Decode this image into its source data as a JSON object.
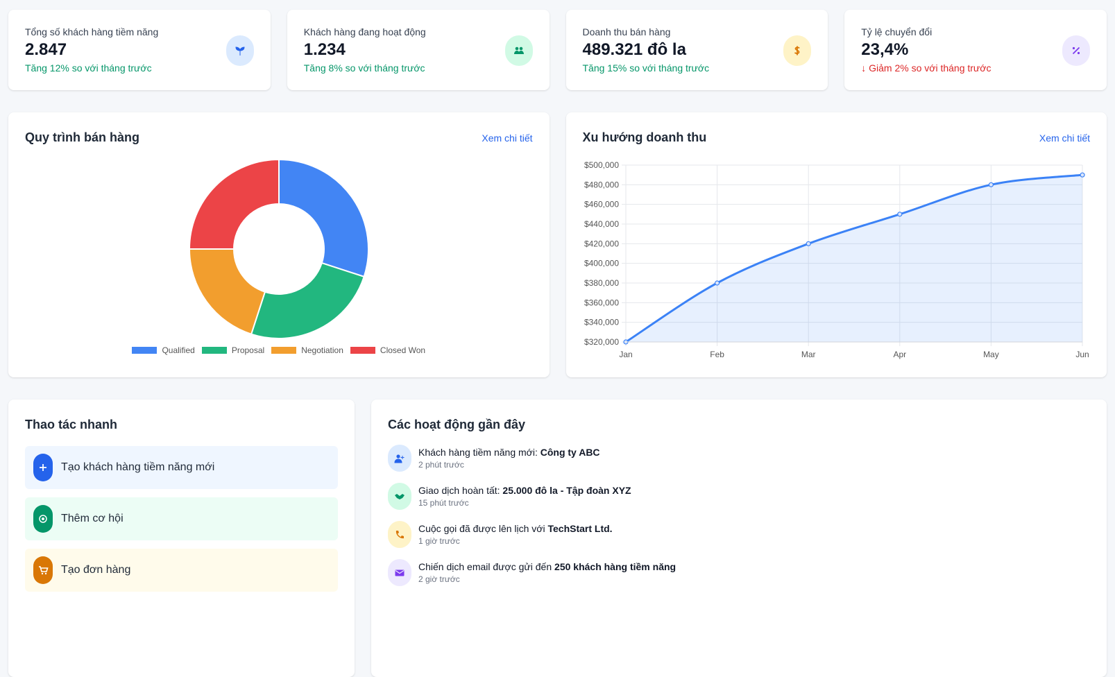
{
  "stats": [
    {
      "title": "Tổng số khách hàng tiềm năng",
      "value": "2.847",
      "change": "Tăng 12% so với tháng trước",
      "change_color": "#059669"
    },
    {
      "title": "Khách hàng đang hoạt động",
      "value": "1.234",
      "change": "Tăng 8% so với tháng trước",
      "change_color": "#059669"
    },
    {
      "title": "Doanh thu bán hàng",
      "value": "489.321 đô la",
      "change": "Tăng 15% so với tháng trước",
      "change_color": "#059669"
    },
    {
      "title": "Tỷ lệ chuyển đổi",
      "value": "23,4%",
      "change": "↓ Giảm 2% so với tháng trước",
      "change_color": "#dc2626"
    }
  ],
  "chart_data": [
    {
      "type": "donut",
      "title": "Quy trình bán hàng",
      "link_text": "Xem chi tiết",
      "categories": [
        "Qualified",
        "Proposal",
        "Negotiation",
        "Closed Won"
      ],
      "values": [
        30,
        25,
        20,
        25
      ],
      "colors": [
        "#4285f4",
        "#22b77f",
        "#f29e2e",
        "#ec4447"
      ],
      "legend": "bottom"
    },
    {
      "type": "line",
      "title": "Xu hướng doanh thu",
      "link_text": "Xem chi tiết",
      "categories": [
        "Jan",
        "Feb",
        "Mar",
        "Apr",
        "May",
        "Jun"
      ],
      "series": [
        {
          "color": "#3b82f6",
          "values": [
            320000,
            380000,
            420000,
            450000,
            480000,
            490000
          ]
        }
      ],
      "ylim": [
        320000,
        500000
      ],
      "yticks": [
        {
          "value": 320000,
          "label": "$320,000"
        },
        {
          "value": 340000,
          "label": "$340,000"
        },
        {
          "value": 360000,
          "label": "$360,000"
        },
        {
          "value": 380000,
          "label": "$380,000"
        },
        {
          "value": 400000,
          "label": "$400,000"
        },
        {
          "value": 420000,
          "label": "$420,000"
        },
        {
          "value": 440000,
          "label": "$440,000"
        },
        {
          "value": 460000,
          "label": "$460,000"
        },
        {
          "value": 480000,
          "label": "$480,000"
        },
        {
          "value": 500000,
          "label": "$500,000"
        }
      ],
      "grid": true,
      "fill": true
    }
  ],
  "quick_actions": {
    "title": "Thao tác nhanh",
    "items": [
      "Tạo khách hàng tiềm năng mới",
      "Thêm cơ hội",
      "Tạo đơn hàng"
    ]
  },
  "activities": {
    "title": "Các hoạt động gần đây",
    "items": [
      {
        "text": "Khách hàng tiềm năng mới: ",
        "highlight": "Công ty ABC",
        "time": "2 phút trước"
      },
      {
        "text": "Giao dịch hoàn tất: ",
        "highlight": "25.000 đô la - Tập đoàn XYZ",
        "time": "15 phút trước"
      },
      {
        "text": "Cuộc gọi đã được lên lịch với ",
        "highlight": "TechStart Ltd.",
        "time": "1 giờ trước"
      },
      {
        "text": "Chiến dịch email được gửi đến ",
        "highlight": "250 khách hàng tiềm năng",
        "time": "2 giờ trước"
      }
    ]
  }
}
